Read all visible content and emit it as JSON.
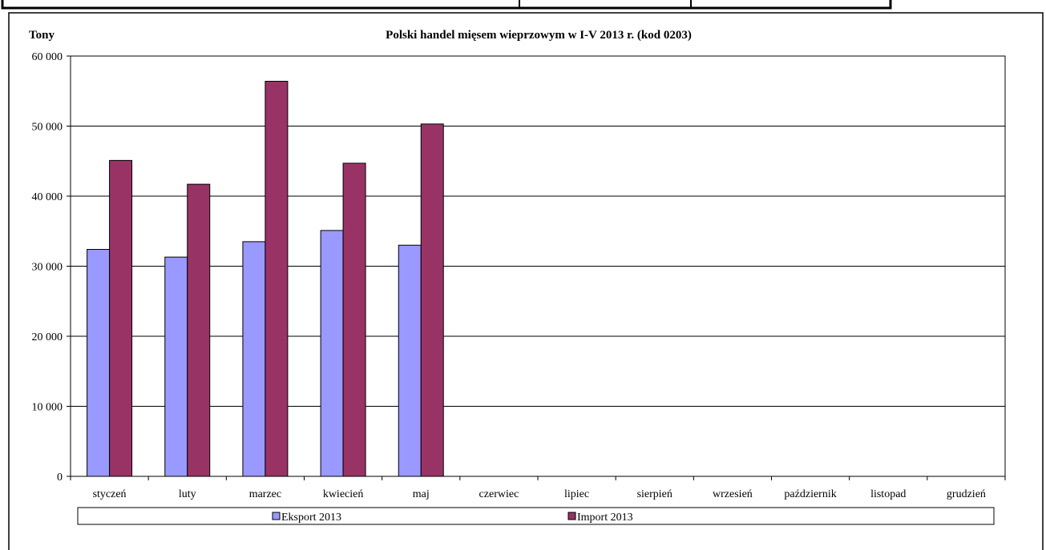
{
  "chart_data": {
    "type": "bar",
    "title": "Polski handel mięsem wieprzowym w I-V 2013 r. (kod 0203)",
    "ylabel": "Tony",
    "xlabel": "",
    "ylim": [
      0,
      60000
    ],
    "yticks": [
      0,
      10000,
      20000,
      30000,
      40000,
      50000,
      60000
    ],
    "ytick_labels": [
      "0",
      "10 000",
      "20 000",
      "30 000",
      "40 000",
      "50 000",
      "60 000"
    ],
    "grid": true,
    "legend_position": "bottom",
    "categories": [
      "styczeń",
      "luty",
      "marzec",
      "kwiecień",
      "maj",
      "czerwiec",
      "lipiec",
      "sierpień",
      "wrzesień",
      "październik",
      "listopad",
      "grudzień"
    ],
    "series": [
      {
        "name": "Eksport 2013",
        "color": "#9999ff",
        "values": [
          32400,
          31300,
          33500,
          35100,
          33000,
          null,
          null,
          null,
          null,
          null,
          null,
          null
        ]
      },
      {
        "name": "Import 2013",
        "color": "#993366",
        "values": [
          45100,
          41700,
          56400,
          44700,
          50300,
          null,
          null,
          null,
          null,
          null,
          null,
          null
        ]
      }
    ]
  }
}
